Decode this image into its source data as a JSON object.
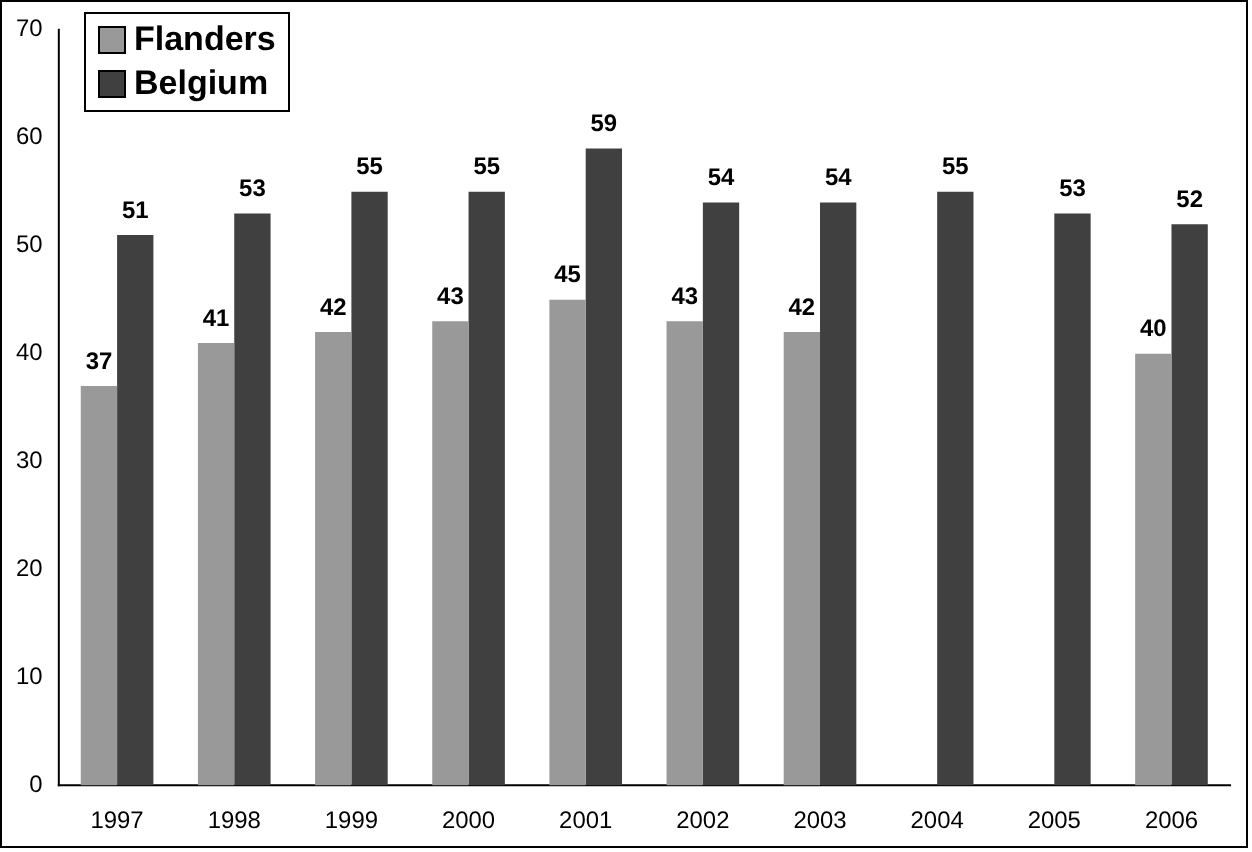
{
  "chart_data": {
    "type": "bar",
    "categories": [
      "1997",
      "1998",
      "1999",
      "2000",
      "2001",
      "2002",
      "2003",
      "2004",
      "2005",
      "2006"
    ],
    "series": [
      {
        "name": "Flanders",
        "color": "#999999",
        "values": [
          37,
          41,
          42,
          43,
          45,
          43,
          42,
          null,
          null,
          40
        ]
      },
      {
        "name": "Belgium",
        "color": "#404040",
        "values": [
          51,
          53,
          55,
          55,
          59,
          54,
          54,
          55,
          53,
          52
        ]
      }
    ],
    "ylim": [
      0,
      70
    ],
    "yticks": [
      0,
      10,
      20,
      30,
      40,
      50,
      60,
      70
    ],
    "grid": false,
    "legend": "top left",
    "data_labels": true
  }
}
